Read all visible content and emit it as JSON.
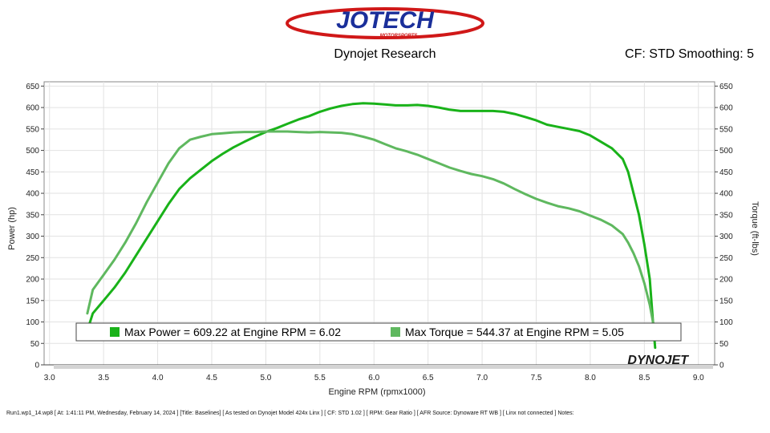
{
  "header": {
    "logo_text": "JOTECH",
    "logo_subtext": "MOTORSPORTS",
    "subtitle": "Dynojet Research",
    "cf_text": "CF: STD Smoothing: 5"
  },
  "chart_data": {
    "type": "line",
    "title": "Dynojet Research",
    "xlabel": "Engine RPM (rpmx1000)",
    "ylabel_left": "Power (hp)",
    "ylabel_right": "Torque (ft-lbs)",
    "xlim": [
      2.95,
      9.15
    ],
    "ylim": [
      0,
      660
    ],
    "x_ticks": [
      "3.0",
      "3.5",
      "4.0",
      "4.5",
      "5.0",
      "5.5",
      "6.0",
      "6.5",
      "7.0",
      "7.5",
      "8.0",
      "8.5",
      "9.0"
    ],
    "y_ticks": [
      "0",
      "50",
      "100",
      "150",
      "200",
      "250",
      "300",
      "350",
      "400",
      "450",
      "500",
      "550",
      "600",
      "650"
    ],
    "grid": true,
    "series": [
      {
        "name": "Power",
        "color": "#19b219",
        "x": [
          3.35,
          3.4,
          3.5,
          3.6,
          3.7,
          3.8,
          3.9,
          4.0,
          4.1,
          4.2,
          4.3,
          4.4,
          4.5,
          4.6,
          4.7,
          4.8,
          4.9,
          5.0,
          5.1,
          5.2,
          5.3,
          5.4,
          5.5,
          5.6,
          5.7,
          5.8,
          5.9,
          6.0,
          6.1,
          6.2,
          6.3,
          6.4,
          6.5,
          6.6,
          6.7,
          6.8,
          6.9,
          7.0,
          7.1,
          7.2,
          7.3,
          7.4,
          7.5,
          7.6,
          7.7,
          7.8,
          7.9,
          8.0,
          8.1,
          8.2,
          8.3,
          8.35,
          8.4,
          8.45,
          8.5,
          8.55,
          8.58,
          8.6
        ],
        "y": [
          80,
          120,
          150,
          180,
          215,
          255,
          295,
          335,
          375,
          410,
          435,
          455,
          475,
          492,
          507,
          520,
          532,
          543,
          552,
          562,
          572,
          580,
          590,
          598,
          604,
          608,
          610,
          609,
          607,
          605,
          605,
          606,
          604,
          600,
          595,
          592,
          592,
          592,
          592,
          590,
          585,
          578,
          570,
          560,
          555,
          550,
          545,
          535,
          520,
          505,
          480,
          450,
          400,
          350,
          280,
          200,
          100,
          40
        ]
      },
      {
        "name": "Torque",
        "color": "#5fb85f",
        "x": [
          3.35,
          3.4,
          3.5,
          3.6,
          3.7,
          3.8,
          3.9,
          4.0,
          4.1,
          4.2,
          4.3,
          4.4,
          4.5,
          4.6,
          4.7,
          4.8,
          4.9,
          5.0,
          5.1,
          5.2,
          5.3,
          5.4,
          5.5,
          5.6,
          5.7,
          5.8,
          5.9,
          6.0,
          6.1,
          6.2,
          6.3,
          6.4,
          6.5,
          6.6,
          6.7,
          6.8,
          6.9,
          7.0,
          7.1,
          7.2,
          7.3,
          7.4,
          7.5,
          7.6,
          7.7,
          7.8,
          7.9,
          8.0,
          8.1,
          8.2,
          8.3,
          8.35,
          8.4,
          8.45,
          8.5,
          8.55,
          8.58,
          8.6
        ],
        "y": [
          120,
          175,
          210,
          245,
          285,
          330,
          380,
          425,
          470,
          505,
          525,
          532,
          538,
          540,
          542,
          543,
          543,
          544,
          544,
          544,
          543,
          542,
          543,
          542,
          541,
          538,
          532,
          525,
          515,
          505,
          498,
          490,
          480,
          470,
          460,
          452,
          445,
          440,
          433,
          423,
          410,
          398,
          387,
          378,
          370,
          365,
          358,
          348,
          338,
          325,
          305,
          285,
          260,
          230,
          190,
          140,
          100,
          70
        ]
      }
    ],
    "legend": [
      {
        "label": "Max Power = 609.22 at Engine RPM = 6.02",
        "color": "#19b219"
      },
      {
        "label": "Max Torque = 544.37 at Engine RPM = 5.05",
        "color": "#5fb85f"
      }
    ],
    "watermark": "DYNOJET"
  },
  "footer": {
    "text": "Run1.wp1_14.wp8 [ At: 1:41:11 PM, Wednesday, February 14, 2024 ] [Title: Baselines] [ As tested on Dynojet Model 424x Linx ] [ CF: STD 1.02 ] [ RPM: Gear Ratio ] [ AFR Source: Dynoware RT WB ] [ Linx not connected ] Notes:"
  }
}
